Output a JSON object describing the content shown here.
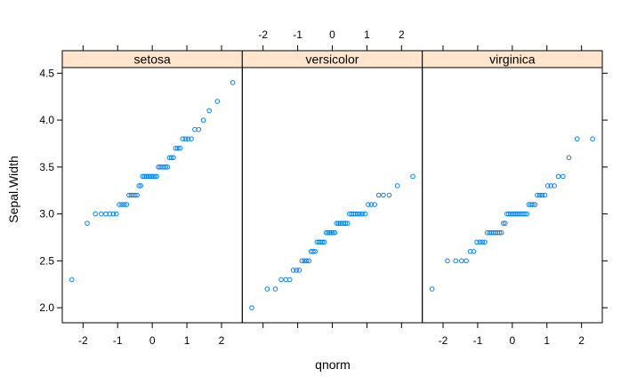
{
  "chart_data": {
    "type": "scatter",
    "xlabel": "qnorm",
    "ylabel": "Sepal.Width",
    "xlim": [
      -2.6,
      2.6
    ],
    "ylim": [
      1.84,
      4.56
    ],
    "x_ticks": [
      -2,
      -1,
      0,
      1,
      2
    ],
    "y_ticks": [
      2.0,
      2.5,
      3.0,
      3.5,
      4.0,
      4.5
    ],
    "x_tick_labels": [
      "-2",
      "-1",
      "0",
      "1",
      "2"
    ],
    "y_tick_labels": [
      "2.0",
      "2.5",
      "3.0",
      "3.5",
      "4.0",
      "4.5"
    ],
    "strip_color": "#ffe5cc",
    "point_color": "#0080ff",
    "panels": [
      {
        "name": "setosa",
        "values": [
          2.3,
          2.9,
          3.0,
          3.0,
          3.0,
          3.0,
          3.0,
          3.0,
          3.1,
          3.1,
          3.1,
          3.1,
          3.2,
          3.2,
          3.2,
          3.2,
          3.2,
          3.3,
          3.3,
          3.4,
          3.4,
          3.4,
          3.4,
          3.4,
          3.4,
          3.4,
          3.4,
          3.4,
          3.5,
          3.5,
          3.5,
          3.5,
          3.5,
          3.5,
          3.6,
          3.6,
          3.6,
          3.7,
          3.7,
          3.7,
          3.8,
          3.8,
          3.8,
          3.8,
          3.9,
          3.9,
          4.0,
          4.1,
          4.2,
          4.4
        ]
      },
      {
        "name": "versicolor",
        "values": [
          2.0,
          2.2,
          2.2,
          2.3,
          2.3,
          2.3,
          2.4,
          2.4,
          2.4,
          2.5,
          2.5,
          2.5,
          2.5,
          2.6,
          2.6,
          2.6,
          2.7,
          2.7,
          2.7,
          2.7,
          2.7,
          2.8,
          2.8,
          2.8,
          2.8,
          2.8,
          2.8,
          2.9,
          2.9,
          2.9,
          2.9,
          2.9,
          2.9,
          2.9,
          3.0,
          3.0,
          3.0,
          3.0,
          3.0,
          3.0,
          3.0,
          3.0,
          3.1,
          3.1,
          3.1,
          3.2,
          3.2,
          3.2,
          3.3,
          3.4
        ]
      },
      {
        "name": "virginica",
        "values": [
          2.2,
          2.5,
          2.5,
          2.5,
          2.5,
          2.6,
          2.6,
          2.7,
          2.7,
          2.7,
          2.7,
          2.8,
          2.8,
          2.8,
          2.8,
          2.8,
          2.8,
          2.8,
          2.8,
          2.9,
          2.9,
          3.0,
          3.0,
          3.0,
          3.0,
          3.0,
          3.0,
          3.0,
          3.0,
          3.0,
          3.0,
          3.0,
          3.0,
          3.1,
          3.1,
          3.1,
          3.1,
          3.2,
          3.2,
          3.2,
          3.2,
          3.3,
          3.3,
          3.3,
          3.4,
          3.4,
          3.6,
          3.8,
          3.8
        ]
      }
    ]
  }
}
